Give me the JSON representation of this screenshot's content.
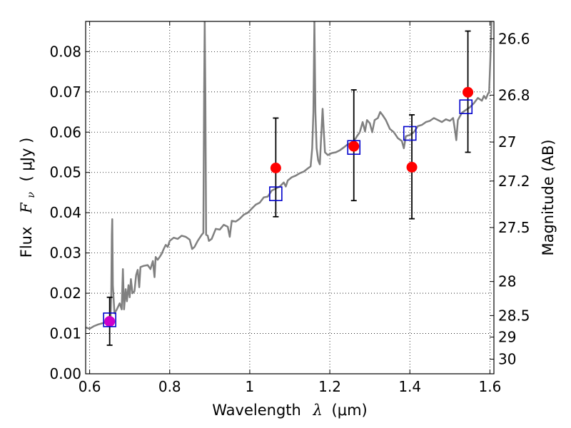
{
  "chart_data": {
    "type": "scatter",
    "xlabel": {
      "prefix": "Wavelength",
      "symbol": "λ",
      "unit": "(μm)"
    },
    "ylabel": {
      "prefix": "Flux",
      "symbol": "F",
      "subscript": "ν",
      "unit": "( μJy )"
    },
    "y2label": "Magnitude (AB)",
    "xlim": [
      0.59,
      1.61
    ],
    "ylim": [
      0.0,
      0.0875
    ],
    "grid": true,
    "xticks": [
      {
        "value": 0.6,
        "label": "0.6"
      },
      {
        "value": 0.8,
        "label": "0.8"
      },
      {
        "value": 1.0,
        "label": "1"
      },
      {
        "value": 1.2,
        "label": "1.2"
      },
      {
        "value": 1.4,
        "label": "1.4"
      },
      {
        "value": 1.6,
        "label": "1.6"
      }
    ],
    "yticks": [
      {
        "value": 0.0,
        "label": "0.00"
      },
      {
        "value": 0.01,
        "label": "0.01"
      },
      {
        "value": 0.02,
        "label": "0.02"
      },
      {
        "value": 0.03,
        "label": "0.03"
      },
      {
        "value": 0.04,
        "label": "0.04"
      },
      {
        "value": 0.05,
        "label": "0.05"
      },
      {
        "value": 0.06,
        "label": "0.06"
      },
      {
        "value": 0.07,
        "label": "0.07"
      },
      {
        "value": 0.08,
        "label": "0.08"
      }
    ],
    "magnitude_ticks": [
      {
        "value": 26.6,
        "label": "26.6"
      },
      {
        "value": 26.8,
        "label": "26.8"
      },
      {
        "value": 27.0,
        "label": "27"
      },
      {
        "value": 27.2,
        "label": "27.2"
      },
      {
        "value": 27.5,
        "label": "27.5"
      },
      {
        "value": 28.0,
        "label": "28"
      },
      {
        "value": 28.5,
        "label": "28.5"
      },
      {
        "value": 29.0,
        "label": "29"
      },
      {
        "value": 30.0,
        "label": "30"
      }
    ],
    "colors": {
      "spectrum": "#808080",
      "observed": "#ff0000",
      "model": "#0000cc",
      "highlight": "#cc00cc",
      "errorbar": "#000000",
      "grid": "#000000"
    },
    "spectrum": [
      [
        0.59,
        0.0115
      ],
      [
        0.6,
        0.0112
      ],
      [
        0.61,
        0.0118
      ],
      [
        0.62,
        0.0122
      ],
      [
        0.63,
        0.0125
      ],
      [
        0.64,
        0.0127
      ],
      [
        0.648,
        0.0128
      ],
      [
        0.652,
        0.0132
      ],
      [
        0.654,
        0.02
      ],
      [
        0.6555,
        0.0345
      ],
      [
        0.6565,
        0.0384
      ],
      [
        0.658,
        0.022
      ],
      [
        0.662,
        0.015
      ],
      [
        0.668,
        0.016
      ],
      [
        0.675,
        0.0175
      ],
      [
        0.68,
        0.016
      ],
      [
        0.683,
        0.026
      ],
      [
        0.686,
        0.016
      ],
      [
        0.69,
        0.021
      ],
      [
        0.693,
        0.018
      ],
      [
        0.697,
        0.022
      ],
      [
        0.7,
        0.019
      ],
      [
        0.703,
        0.0235
      ],
      [
        0.707,
        0.02
      ],
      [
        0.712,
        0.0205
      ],
      [
        0.716,
        0.0245
      ],
      [
        0.72,
        0.0258
      ],
      [
        0.724,
        0.0215
      ],
      [
        0.727,
        0.0265
      ],
      [
        0.735,
        0.0268
      ],
      [
        0.745,
        0.027
      ],
      [
        0.752,
        0.026
      ],
      [
        0.758,
        0.028
      ],
      [
        0.762,
        0.024
      ],
      [
        0.765,
        0.029
      ],
      [
        0.77,
        0.0283
      ],
      [
        0.775,
        0.029
      ],
      [
        0.78,
        0.0298
      ],
      [
        0.785,
        0.031
      ],
      [
        0.79,
        0.032
      ],
      [
        0.795,
        0.0315
      ],
      [
        0.8,
        0.033
      ],
      [
        0.81,
        0.0338
      ],
      [
        0.82,
        0.0335
      ],
      [
        0.83,
        0.0343
      ],
      [
        0.84,
        0.034
      ],
      [
        0.85,
        0.0333
      ],
      [
        0.856,
        0.031
      ],
      [
        0.862,
        0.0315
      ],
      [
        0.87,
        0.033
      ],
      [
        0.88,
        0.0345
      ],
      [
        0.884,
        0.035
      ],
      [
        0.886,
        0.07
      ],
      [
        0.8875,
        0.0875
      ],
      [
        0.889,
        0.07
      ],
      [
        0.891,
        0.0345
      ],
      [
        0.895,
        0.0343
      ],
      [
        0.898,
        0.033
      ],
      [
        0.905,
        0.0335
      ],
      [
        0.915,
        0.036
      ],
      [
        0.925,
        0.0358
      ],
      [
        0.935,
        0.037
      ],
      [
        0.945,
        0.0365
      ],
      [
        0.95,
        0.034
      ],
      [
        0.955,
        0.038
      ],
      [
        0.965,
        0.0378
      ],
      [
        0.975,
        0.0385
      ],
      [
        0.985,
        0.0395
      ],
      [
        0.995,
        0.04
      ],
      [
        1.005,
        0.041
      ],
      [
        1.015,
        0.042
      ],
      [
        1.025,
        0.0425
      ],
      [
        1.035,
        0.0438
      ],
      [
        1.045,
        0.044
      ],
      [
        1.055,
        0.0455
      ],
      [
        1.065,
        0.046
      ],
      [
        1.075,
        0.0465
      ],
      [
        1.085,
        0.0475
      ],
      [
        1.09,
        0.0465
      ],
      [
        1.095,
        0.048
      ],
      [
        1.105,
        0.0488
      ],
      [
        1.115,
        0.0492
      ],
      [
        1.125,
        0.0498
      ],
      [
        1.135,
        0.0502
      ],
      [
        1.145,
        0.051
      ],
      [
        1.152,
        0.0515
      ],
      [
        1.156,
        0.056
      ],
      [
        1.159,
        0.065
      ],
      [
        1.1615,
        0.0875
      ],
      [
        1.164,
        0.065
      ],
      [
        1.167,
        0.056
      ],
      [
        1.171,
        0.053
      ],
      [
        1.175,
        0.052
      ],
      [
        1.179,
        0.06
      ],
      [
        1.182,
        0.0658
      ],
      [
        1.185,
        0.06
      ],
      [
        1.188,
        0.055
      ],
      [
        1.195,
        0.0543
      ],
      [
        1.205,
        0.0548
      ],
      [
        1.215,
        0.055
      ],
      [
        1.225,
        0.0555
      ],
      [
        1.235,
        0.0562
      ],
      [
        1.245,
        0.057
      ],
      [
        1.255,
        0.0575
      ],
      [
        1.262,
        0.058
      ],
      [
        1.268,
        0.059
      ],
      [
        1.275,
        0.06
      ],
      [
        1.282,
        0.0625
      ],
      [
        1.288,
        0.0602
      ],
      [
        1.293,
        0.063
      ],
      [
        1.3,
        0.0622
      ],
      [
        1.306,
        0.06
      ],
      [
        1.312,
        0.063
      ],
      [
        1.32,
        0.0635
      ],
      [
        1.326,
        0.065
      ],
      [
        1.332,
        0.0642
      ],
      [
        1.34,
        0.063
      ],
      [
        1.35,
        0.0608
      ],
      [
        1.36,
        0.06
      ],
      [
        1.37,
        0.0585
      ],
      [
        1.38,
        0.0578
      ],
      [
        1.385,
        0.056
      ],
      [
        1.39,
        0.059
      ],
      [
        1.4,
        0.0593
      ],
      [
        1.41,
        0.06
      ],
      [
        1.42,
        0.0615
      ],
      [
        1.43,
        0.0618
      ],
      [
        1.44,
        0.0625
      ],
      [
        1.45,
        0.0628
      ],
      [
        1.46,
        0.0635
      ],
      [
        1.47,
        0.063
      ],
      [
        1.48,
        0.0625
      ],
      [
        1.49,
        0.0632
      ],
      [
        1.5,
        0.0628
      ],
      [
        1.508,
        0.0635
      ],
      [
        1.512,
        0.061
      ],
      [
        1.516,
        0.058
      ],
      [
        1.52,
        0.063
      ],
      [
        1.53,
        0.0648
      ],
      [
        1.54,
        0.0655
      ],
      [
        1.55,
        0.0662
      ],
      [
        1.56,
        0.0672
      ],
      [
        1.57,
        0.0685
      ],
      [
        1.58,
        0.0678
      ],
      [
        1.585,
        0.069
      ],
      [
        1.59,
        0.0683
      ],
      [
        1.595,
        0.0695
      ],
      [
        1.598,
        0.07
      ],
      [
        1.601,
        0.078
      ],
      [
        1.604,
        0.0875
      ]
    ],
    "observed": [
      {
        "x": 0.65,
        "y": 0.013,
        "yerr_low": 0.0071,
        "yerr_high": 0.019
      },
      {
        "x": 1.065,
        "y": 0.0511,
        "yerr_low": 0.039,
        "yerr_high": 0.0635
      },
      {
        "x": 1.26,
        "y": 0.0565,
        "yerr_low": 0.043,
        "yerr_high": 0.0705
      },
      {
        "x": 1.405,
        "y": 0.0513,
        "yerr_low": 0.0385,
        "yerr_high": 0.0643
      },
      {
        "x": 1.545,
        "y": 0.0699,
        "yerr_low": 0.055,
        "yerr_high": 0.0851
      }
    ],
    "model": [
      {
        "x": 0.65,
        "y": 0.0134
      },
      {
        "x": 1.065,
        "y": 0.0447
      },
      {
        "x": 1.26,
        "y": 0.0562
      },
      {
        "x": 1.4,
        "y": 0.0597
      },
      {
        "x": 1.54,
        "y": 0.0663
      }
    ],
    "highlight": [
      {
        "x": 0.65,
        "y": 0.013
      }
    ]
  }
}
